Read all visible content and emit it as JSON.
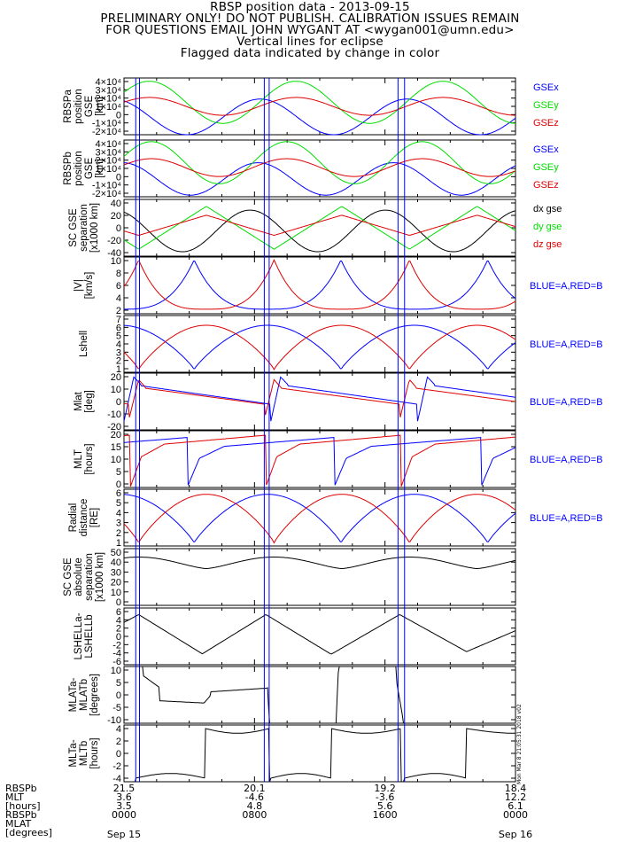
{
  "header": {
    "lines": [
      "RBSP position data - 2013-09-15",
      "PRELIMINARY ONLY! DO NOT PUBLISH. CALIBRATION ISSUES REMAIN",
      "FOR QUESTIONS EMAIL JOHN WYGANT AT <wygan001@umn.edu>",
      "Vertical lines for eclipse",
      "Flagged data indicated by change in color"
    ]
  },
  "colors": {
    "blue": "#0000ff",
    "green": "#00dd00",
    "red": "#dd0000",
    "black": "#000000"
  },
  "chart_data": {
    "type": "line",
    "x_range_hours": [
      0,
      24
    ],
    "eclipse_lines_hours": [
      0.72,
      0.95,
      8.6,
      8.9,
      16.8,
      17.2
    ],
    "panels": [
      {
        "id": "rbspa",
        "ylabel": [
          "RBSPa",
          "position",
          "GSE",
          "[km]"
        ],
        "ylim": [
          -30000,
          40000
        ],
        "ticks": [
          "4×10⁴",
          "3×10⁴",
          "2×10⁴",
          "1×10⁴",
          "0",
          "-1×10⁴",
          "-2×10⁴"
        ],
        "legend": [
          "GSEx",
          "GSEy",
          "GSEz"
        ],
        "series": [
          {
            "name": "GSEx",
            "color": "blue",
            "kind": "sin",
            "mean": -8000,
            "amp": -22000,
            "period": 9.0,
            "phase": 1.6
          },
          {
            "name": "GSEy",
            "color": "green",
            "kind": "sin",
            "mean": 10000,
            "amp": 26000,
            "period": 9.0,
            "phase": -0.7
          },
          {
            "name": "GSEz",
            "color": "red",
            "kind": "sin",
            "mean": 5000,
            "amp": 11000,
            "period": 9.0,
            "phase": -0.7
          }
        ]
      },
      {
        "id": "rbspb",
        "ylabel": [
          "RBSPb",
          "position",
          "GSE",
          "[km]"
        ],
        "ylim": [
          -30000,
          40000
        ],
        "ticks": [
          "4×10⁴",
          "3×10⁴",
          "2×10⁴",
          "1×10⁴",
          "0",
          "-1×10⁴",
          "-2×10⁴"
        ],
        "legend": [
          "GSEx",
          "GSEy",
          "GSEz"
        ],
        "series": [
          {
            "name": "GSEx",
            "color": "blue",
            "kind": "sin",
            "mean": -8000,
            "amp": -20000,
            "period": 8.3,
            "phase": 2.0
          },
          {
            "name": "GSEy",
            "color": "green",
            "kind": "sin",
            "mean": 12000,
            "amp": 26000,
            "period": 8.3,
            "phase": -0.4
          },
          {
            "name": "GSEz",
            "color": "red",
            "kind": "sin",
            "mean": 6000,
            "amp": 11000,
            "period": 8.3,
            "phase": -0.4
          }
        ]
      },
      {
        "id": "scsep",
        "ylabel": [
          "SC GSE",
          "separation",
          "[x1000 km]"
        ],
        "ylim": [
          -45,
          45
        ],
        "ticks": [
          "40",
          "20",
          "0",
          "-20",
          "-40"
        ],
        "legend": [
          "dx gse",
          "dy gse",
          "dz gse"
        ],
        "series": [
          {
            "name": "dx gse",
            "color": "black",
            "kind": "sin",
            "mean": -5,
            "amp": -33,
            "period": 8.3,
            "phase": 1.5
          },
          {
            "name": "dy gse",
            "color": "green",
            "kind": "tri",
            "mean": 0,
            "amp": 34,
            "period": 8.3,
            "phase": 0.9
          },
          {
            "name": "dz gse",
            "color": "red",
            "kind": "tri",
            "mean": 4,
            "amp": 16,
            "period": 8.3,
            "phase": 0.9
          }
        ]
      },
      {
        "id": "vel",
        "ylabel": [
          "|V|",
          "[km/s]"
        ],
        "ylim": [
          0.5,
          10.5
        ],
        "ticks": [
          "10",
          "8",
          "6",
          "4",
          "2"
        ],
        "legend": [
          "BLUE=A,RED=B"
        ],
        "legend_color": "blue",
        "series": [
          {
            "name": "A",
            "color": "blue",
            "kind": "cusp",
            "min": 1.3,
            "max": 10,
            "period": 9.0,
            "phase": 4.3
          },
          {
            "name": "B",
            "color": "red",
            "kind": "cusp",
            "min": 1.3,
            "max": 10,
            "period": 8.3,
            "phase": 0.9
          }
        ]
      },
      {
        "id": "lshell",
        "ylabel": [
          "Lshell"
        ],
        "ylim": [
          0.8,
          7.2
        ],
        "ticks": [
          "7",
          "6",
          "5",
          "4",
          "3",
          "2",
          "1"
        ],
        "legend": [
          "BLUE=A,RED=B"
        ],
        "legend_color": "blue",
        "series": [
          {
            "name": "A",
            "color": "blue",
            "kind": "arch",
            "min": 1.1,
            "max": 6.1,
            "period": 9.0,
            "phase": 4.3
          },
          {
            "name": "B",
            "color": "red",
            "kind": "arch",
            "min": 1.1,
            "max": 6.1,
            "period": 8.3,
            "phase": 0.9
          }
        ]
      },
      {
        "id": "mlat",
        "ylabel": [
          "Mlat",
          "[deg]"
        ],
        "ylim": [
          -22,
          22
        ],
        "ticks": [
          "20",
          "10",
          "0",
          "-10",
          "-20"
        ],
        "legend": [
          "BLUE=A,RED=B"
        ],
        "legend_color": "blue",
        "series": [
          {
            "name": "A",
            "color": "blue",
            "kind": "saw",
            "start": 13,
            "drift": -1.8,
            "period": 9.0,
            "phase": 0.6,
            "low": -17,
            "high": 19
          },
          {
            "name": "B",
            "color": "red",
            "kind": "saw",
            "start": 11,
            "drift": -1.7,
            "period": 8.3,
            "phase": 0.9,
            "low": -13,
            "high": 17
          }
        ]
      },
      {
        "id": "mlt",
        "ylabel": [
          "MLT",
          "[hours]"
        ],
        "ylim": [
          -0.5,
          25
        ],
        "ticks": [
          "20",
          "15",
          "10",
          "5",
          "0"
        ],
        "legend": [
          "BLUE=A,RED=B"
        ],
        "legend_color": "blue",
        "series": [
          {
            "name": "A",
            "color": "blue",
            "kind": "mlt",
            "base": 18,
            "period": 9.0,
            "phase": 3.9
          },
          {
            "name": "B",
            "color": "red",
            "kind": "mlt",
            "base": 19,
            "period": 8.3,
            "phase": 0.4
          }
        ]
      },
      {
        "id": "radial",
        "ylabel": [
          "Radial",
          "distance",
          "[RE]"
        ],
        "ylim": [
          0.8,
          6.4
        ],
        "ticks": [
          "6",
          "5",
          "4",
          "3",
          "2",
          "1"
        ],
        "legend": [
          "BLUE=A,RED=B"
        ],
        "legend_color": "blue",
        "series": [
          {
            "name": "A",
            "color": "blue",
            "kind": "arch",
            "min": 1.1,
            "max": 5.9,
            "period": 9.0,
            "phase": 4.3
          },
          {
            "name": "B",
            "color": "red",
            "kind": "arch",
            "min": 1.1,
            "max": 5.9,
            "period": 8.3,
            "phase": 0.9
          }
        ]
      },
      {
        "id": "abssep",
        "ylabel": [
          "SC GSE",
          "absolute",
          "separation",
          "[x1000 km]"
        ],
        "ylim": [
          -2,
          52
        ],
        "ticks": [
          "50",
          "40",
          "30",
          "20",
          "10",
          "0"
        ],
        "legend": [],
        "series": [
          {
            "name": "abs",
            "color": "black",
            "kind": "scallop",
            "min": 33,
            "max": 44,
            "period": 8.3,
            "phase": 0.9
          }
        ]
      },
      {
        "id": "dlshell",
        "ylabel": [
          "LSHELLa-",
          "LSHELLb"
        ],
        "ylim": [
          -6.5,
          6.5
        ],
        "ticks": [
          "6",
          "4",
          "2",
          "0",
          "-2",
          "-4",
          "-6"
        ],
        "legend": [],
        "series": [
          {
            "name": "dL",
            "color": "black",
            "kind": "zig",
            "peaks": [
              [
                0,
                3.2
              ],
              [
                0.9,
                5.0
              ],
              [
                4.8,
                -4.0
              ],
              [
                8.7,
                5.0
              ],
              [
                12.7,
                -4.1
              ],
              [
                16.9,
                5.0
              ],
              [
                21.0,
                -3.5
              ],
              [
                24,
                1.3
              ]
            ]
          }
        ]
      },
      {
        "id": "dmlat",
        "ylabel": [
          "MLATa-",
          "MLATb",
          "[degrees]"
        ],
        "ylim": [
          -12,
          12
        ],
        "ticks": [
          "10",
          "5",
          "0",
          "-5",
          "-10"
        ],
        "legend": [],
        "series": [
          {
            "name": "dMlat",
            "color": "black",
            "kind": "dmlat"
          }
        ]
      },
      {
        "id": "dmlt",
        "ylabel": [
          "MLTa-",
          "MLTb",
          "[hours]"
        ],
        "ylim": [
          -4.8,
          4.8
        ],
        "ticks": [
          "4",
          "2",
          "0",
          "-2",
          "-4"
        ],
        "legend": [],
        "series": [
          {
            "name": "dMlt",
            "color": "black",
            "kind": "dmlt"
          }
        ]
      }
    ],
    "bottom_axis": {
      "row_labels": [
        "RBSPb",
        "MLT",
        "[hours]",
        "RBSPb",
        "MLAT",
        "[degrees]"
      ],
      "columns": [
        {
          "hour": 0,
          "values": [
            "21.5",
            "3.6",
            "3.5",
            "0000",
            "Sep 15"
          ]
        },
        {
          "hour": 8,
          "values": [
            "20.1",
            "-4.6",
            "4.8",
            "0800",
            ""
          ]
        },
        {
          "hour": 16,
          "values": [
            "19.2",
            "-3.6",
            "5.6",
            "1600",
            ""
          ]
        },
        {
          "hour": 24,
          "values": [
            "18.4",
            "12.2",
            "6.1",
            "0000",
            "Sep 16"
          ]
        }
      ]
    }
  },
  "stamp": "Mon Mar 8 21:05:31 2018 v02"
}
